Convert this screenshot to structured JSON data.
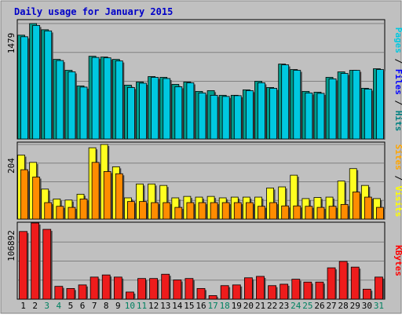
{
  "chart_data": {
    "type": "bar",
    "title": "Daily usage for January 2015",
    "categories": [
      "1",
      "2",
      "3",
      "4",
      "5",
      "6",
      "7",
      "8",
      "9",
      "10",
      "11",
      "12",
      "13",
      "14",
      "15",
      "16",
      "17",
      "18",
      "19",
      "20",
      "21",
      "22",
      "23",
      "24",
      "25",
      "26",
      "27",
      "28",
      "29",
      "30",
      "31"
    ],
    "weekend_days": [
      "3",
      "4",
      "10",
      "11",
      "17",
      "18",
      "24",
      "25",
      "31"
    ],
    "panels": [
      {
        "name": "pages-files-hits",
        "ylabel_max": "1479",
        "ymax": 1479,
        "legend": [
          {
            "text": "Pages",
            "color": "#00c8e0"
          },
          {
            "text": "Files",
            "color": "#0000ff"
          },
          {
            "text": "Hits",
            "color": "#008080"
          }
        ],
        "series": [
          {
            "name": "Hits",
            "color": "#009c8c",
            "values": [
              1330,
              1479,
              1400,
              1020,
              880,
              680,
              1060,
              1050,
              1020,
              690,
              730,
              800,
              790,
              700,
              730,
              610,
              620,
              560,
              560,
              630,
              740,
              660,
              960,
              890,
              610,
              600,
              790,
              860,
              880,
              650,
              900
            ]
          },
          {
            "name": "Files",
            "color": "#00c8e0",
            "values": [
              1310,
              1455,
              1385,
              1005,
              860,
              665,
              1045,
              1040,
              1000,
              660,
              715,
              790,
              775,
              670,
              720,
              590,
              560,
              545,
              555,
              620,
              720,
              650,
              950,
              880,
              590,
              585,
              770,
              840,
              880,
              640,
              890
            ]
          }
        ]
      },
      {
        "name": "sites-visits",
        "ylabel_max": "204",
        "ymax": 204,
        "legend": [
          {
            "text": "Sites",
            "color": "#ffa500"
          },
          {
            "text": "Visits",
            "color": "#ffff00"
          }
        ],
        "series": [
          {
            "name": "Visits",
            "color": "#ffff20",
            "values": [
              175,
              155,
              82,
              55,
              52,
              68,
              195,
              204,
              143,
              58,
              96,
              96,
              92,
              58,
              62,
              60,
              62,
              58,
              60,
              60,
              60,
              85,
              88,
              120,
              56,
              59,
              60,
              104,
              138,
              92,
              56
            ]
          },
          {
            "name": "Sites",
            "color": "#ff8c00",
            "values": [
              135,
              115,
              45,
              35,
              32,
              55,
              155,
              130,
              124,
              48,
              48,
              45,
              45,
              32,
              45,
              45,
              45,
              45,
              45,
              45,
              35,
              45,
              36,
              36,
              35,
              32,
              35,
              40,
              74,
              60,
              32
            ]
          }
        ]
      },
      {
        "name": "kbytes",
        "ylabel_max": "106892",
        "ymax": 106892,
        "legend": [
          {
            "text": "KBytes",
            "color": "#ff0000"
          }
        ],
        "series": [
          {
            "name": "KBytes",
            "color": "#ee1c1c",
            "values": [
              95000,
              106892,
              98000,
              18000,
              15000,
              20000,
              31000,
              34000,
              31000,
              10000,
              29000,
              29000,
              35000,
              27000,
              29000,
              15000,
              5000,
              19000,
              20000,
              30000,
              32000,
              19000,
              21000,
              28000,
              24000,
              24000,
              44000,
              53000,
              45000,
              14000,
              31000
            ]
          }
        ]
      }
    ]
  }
}
